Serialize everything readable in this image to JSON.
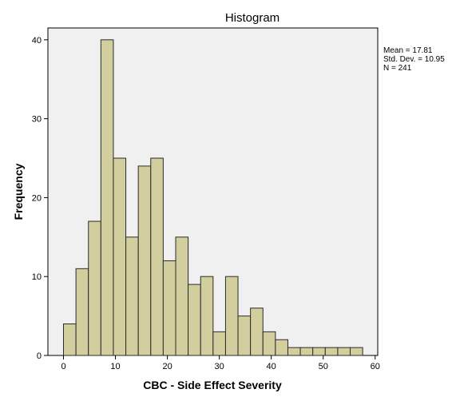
{
  "chart_data": {
    "type": "bar",
    "title": "Histogram",
    "xlabel": "CBC - Side Effect Severity",
    "ylabel": "Frequency",
    "xlim": [
      -3,
      60.5
    ],
    "ylim": [
      0,
      41.5
    ],
    "x_ticks": [
      0,
      10,
      20,
      30,
      40,
      50,
      60
    ],
    "y_ticks": [
      0,
      10,
      20,
      30,
      40
    ],
    "bin_width": 2.4,
    "bins": [
      {
        "start": 0.0,
        "end": 2.4,
        "count": 4
      },
      {
        "start": 2.4,
        "end": 4.8,
        "count": 11
      },
      {
        "start": 4.8,
        "end": 7.2,
        "count": 17
      },
      {
        "start": 7.2,
        "end": 9.6,
        "count": 40
      },
      {
        "start": 9.6,
        "end": 12.0,
        "count": 25
      },
      {
        "start": 12.0,
        "end": 14.4,
        "count": 15
      },
      {
        "start": 14.4,
        "end": 16.8,
        "count": 24
      },
      {
        "start": 16.8,
        "end": 19.2,
        "count": 25
      },
      {
        "start": 19.2,
        "end": 21.6,
        "count": 12
      },
      {
        "start": 21.6,
        "end": 24.0,
        "count": 15
      },
      {
        "start": 24.0,
        "end": 26.4,
        "count": 9
      },
      {
        "start": 26.4,
        "end": 28.8,
        "count": 10
      },
      {
        "start": 28.8,
        "end": 31.2,
        "count": 3
      },
      {
        "start": 31.2,
        "end": 33.6,
        "count": 10
      },
      {
        "start": 33.6,
        "end": 36.0,
        "count": 5
      },
      {
        "start": 36.0,
        "end": 38.4,
        "count": 6
      },
      {
        "start": 38.4,
        "end": 40.8,
        "count": 3
      },
      {
        "start": 40.8,
        "end": 43.2,
        "count": 2
      },
      {
        "start": 43.2,
        "end": 45.6,
        "count": 1
      },
      {
        "start": 45.6,
        "end": 48.0,
        "count": 1
      },
      {
        "start": 48.0,
        "end": 50.4,
        "count": 1
      },
      {
        "start": 50.4,
        "end": 52.8,
        "count": 1
      },
      {
        "start": 52.8,
        "end": 55.2,
        "count": 1
      },
      {
        "start": 55.2,
        "end": 57.6,
        "count": 1
      }
    ],
    "stats": [
      "Mean = 17.81",
      "Std. Dev. = 10.95",
      "N = 241"
    ],
    "colors": {
      "bar_fill": "#D3CE9E",
      "bar_stroke": "#2B2B2B",
      "plot_background": "#F0F0F0",
      "axis": "#000000"
    }
  }
}
